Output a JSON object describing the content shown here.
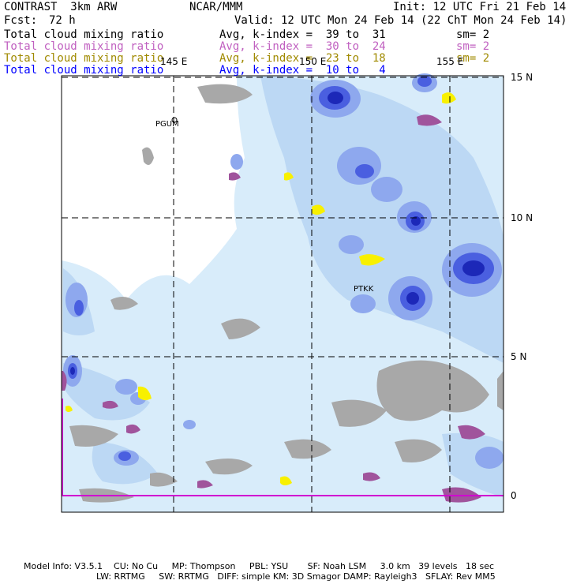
{
  "header": {
    "product": "CONTRAST  3km ARW",
    "org": "NCAR/MMM",
    "init": "Init: 12 UTC Fri 21 Feb 14",
    "fcst_label": "Fcst:",
    "fcst_value": "72 h",
    "valid": "Valid: 12 UTC Mon 24 Feb 14 (22 ChT Mon 24 Feb 14)"
  },
  "fields": [
    {
      "name": "Total cloud mixing ratio",
      "stat": "Avg, k-index =  39 to  31",
      "sm": "sm= 2",
      "color": "#000000"
    },
    {
      "name": "Total cloud mixing ratio",
      "stat": "Avg, k-index =  30 to  24",
      "sm": "sm= 2",
      "color": "#c060c0"
    },
    {
      "name": "Total cloud mixing ratio",
      "stat": "Avg, k-index =  23 to  18",
      "sm": "sm= 2",
      "color": "#a08a00"
    },
    {
      "name": "Total cloud mixing ratio",
      "stat": "Avg, k-index =  10 to   4",
      "sm": "",
      "color": "#0000ff"
    }
  ],
  "map": {
    "lon_labels": [
      "145 E",
      "150 E",
      "155 E"
    ],
    "lat_labels": [
      "15 N",
      "10 N",
      "5 N",
      "0"
    ],
    "stations": [
      "PGUM",
      "PTKK"
    ],
    "colors": {
      "land": "#a8a8a8",
      "cloud_light": "#d8ecfa",
      "cloud_mid": "#bcd8f4",
      "cloud_blue": "#8ea8ee",
      "cloud_deep": "#4a5fe0",
      "cloud_core": "#1c28b8",
      "mid_cloud": "#a0549c",
      "yellow_cloud": "#f8f000",
      "equator": "#d000d0"
    }
  },
  "footer": {
    "line1": "Model Info: V3.5.1    CU: No Cu     MP: Thompson     PBL: YSU       SF: Noah LSM     3.0 km   39 levels   18 sec",
    "line2": "LW: RRTMG     SW: RRTMG   DIFF: simple KM: 3D Smagor DAMP: Rayleigh3   SFLAY: Rev MM5"
  }
}
